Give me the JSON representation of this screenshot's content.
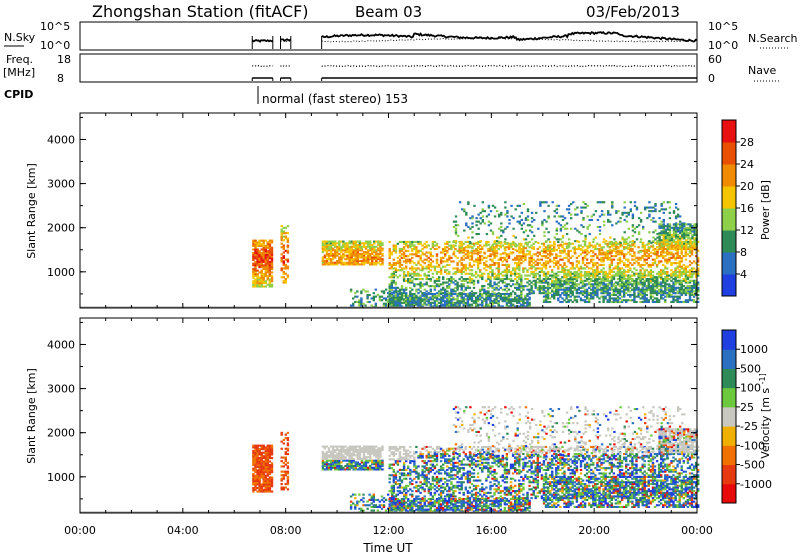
{
  "header": {
    "station": "Zhongshan Station (fitACF)",
    "beam": "Beam 03",
    "date": "03/Feb/2013"
  },
  "panels": {
    "nsky": {
      "left_label": "N.Sky",
      "left_ticks": [
        "10^5",
        "10^0"
      ],
      "right_ticks": [
        "10^5",
        "10^0"
      ],
      "right_label": "N.Search"
    },
    "freq": {
      "left_label_1": "Freq.",
      "left_label_2": "[MHz]",
      "left_ticks": [
        "18",
        "8"
      ],
      "right_ticks": [
        "60",
        "0"
      ],
      "right_label": "Nave"
    },
    "cpid": {
      "label": "CPID",
      "mode_text": "normal (fast stereo) 153"
    }
  },
  "x_axis": {
    "ticks": [
      "00:00",
      "04:00",
      "08:00",
      "12:00",
      "16:00",
      "20:00",
      "00:00"
    ],
    "label": "Time UT"
  },
  "chart_data": [
    {
      "type": "heatmap",
      "name": "power",
      "ylabel": "Slant Range [km]",
      "yticks": [
        "1000",
        "2000",
        "3000",
        "4000"
      ],
      "ylim": [
        180,
        4600
      ],
      "xlim": [
        0,
        24
      ],
      "colorbar": {
        "label": "Power [dB]",
        "levels": [
          "4",
          "8",
          "12",
          "16",
          "20",
          "24",
          "28"
        ],
        "colors": [
          "#1f3fe0",
          "#2a6fc2",
          "#2e8b57",
          "#8fd04a",
          "#f5c400",
          "#f08a00",
          "#e85000",
          "#e81010"
        ]
      }
    },
    {
      "type": "heatmap",
      "name": "velocity",
      "ylabel": "Slant Range [km]",
      "yticks": [
        "1000",
        "2000",
        "3000",
        "4000"
      ],
      "ylim": [
        180,
        4600
      ],
      "xlim": [
        0,
        24
      ],
      "colorbar": {
        "label": "Velocity [m s^-1]",
        "levels": [
          "1000",
          "500",
          "100",
          "25",
          "-25",
          "-100",
          "-500",
          "-1000"
        ],
        "colors": [
          "#1f3fe0",
          "#2a6fc2",
          "#2e8b57",
          "#6cc83c",
          "#c8c8c0",
          "#f0b000",
          "#f07000",
          "#e83a10",
          "#e80a0a"
        ]
      }
    }
  ]
}
